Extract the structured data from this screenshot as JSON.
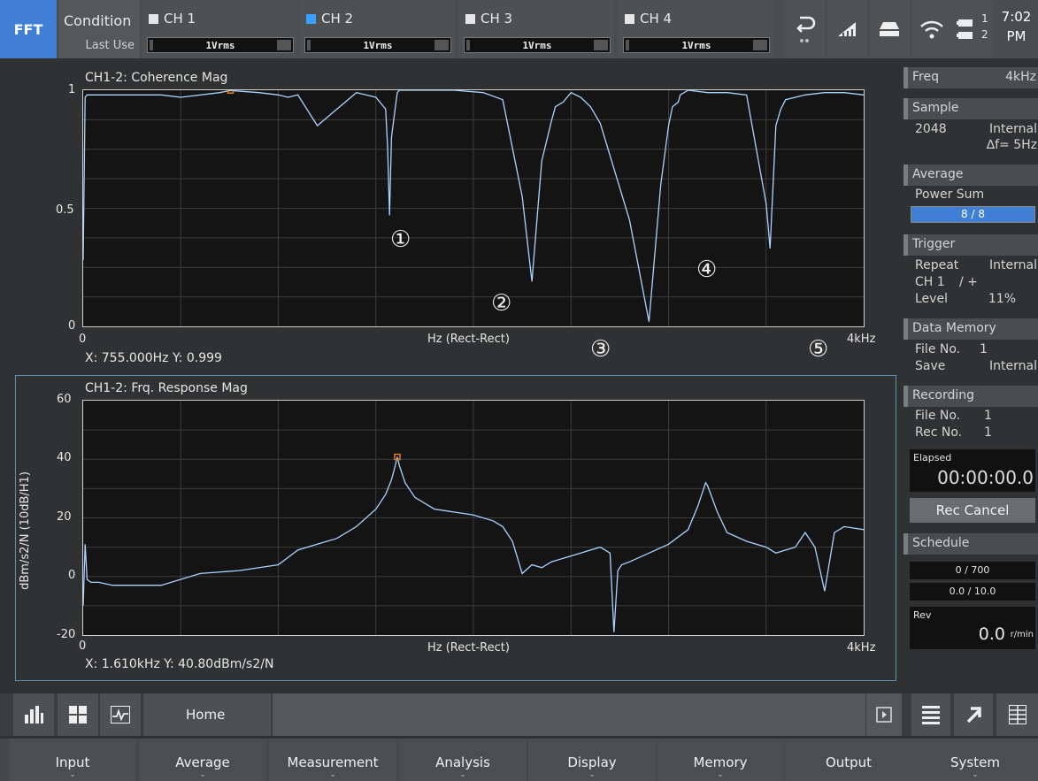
{
  "topbar": {
    "mode": "FFT",
    "condition_label": "Condition",
    "condition_sub": "Last Use",
    "channels": [
      {
        "label": "CH 1",
        "range": "1Vrms",
        "color": "#e6e6e6"
      },
      {
        "label": "CH 2",
        "range": "1Vrms",
        "color": "#3aa0ff"
      },
      {
        "label": "CH 3",
        "range": "1Vrms",
        "color": "#e6e6e6"
      },
      {
        "label": "CH 4",
        "range": "1Vrms",
        "color": "#e6e6e6"
      }
    ],
    "icons": [
      "return-icon",
      "ruler-icon",
      "drive-icon",
      "wifi-icon",
      "battery-icon"
    ],
    "battery_labels": [
      "1",
      "2"
    ],
    "time": "7:02",
    "ampm": "PM"
  },
  "plot1": {
    "title": "CH1-2: Coherence Mag",
    "y_ticks": [
      "1",
      "0.5",
      "0"
    ],
    "x_start": "0",
    "x_end": "4kHz",
    "x_axis_label": "Hz (Rect-Rect)",
    "readout": "X: 755.000Hz Y: 0.999",
    "markers": [
      "①",
      "②",
      "③",
      "④",
      "⑤"
    ]
  },
  "plot2": {
    "title": "CH1-2: Frq. Response Mag",
    "y_axis_label": "dBm/s2/N (10dB/H1)",
    "y_ticks": [
      "60",
      "40",
      "20",
      "0",
      "-20"
    ],
    "x_start": "0",
    "x_end": "4kHz",
    "x_axis_label": "Hz (Rect-Rect)",
    "readout": "X: 1.610kHz Y: 40.80dBm/s2/N"
  },
  "chart_data": [
    {
      "type": "line",
      "title": "CH1-2: Coherence Mag",
      "xlabel": "Hz (Rect-Rect)",
      "xlim": [
        0,
        4000
      ],
      "ylim": [
        0,
        1
      ],
      "grid": true,
      "cursor": {
        "x": 755,
        "y": 0.999
      },
      "x": [
        0,
        10,
        20,
        60,
        200,
        400,
        500,
        700,
        755,
        900,
        1000,
        1050,
        1100,
        1200,
        1400,
        1450,
        1500,
        1550,
        1560,
        1570,
        1580,
        1600,
        1610,
        1620,
        1650,
        1700,
        1750,
        1800,
        1900,
        2050,
        2150,
        2250,
        2300,
        2350,
        2400,
        2420,
        2460,
        2500,
        2550,
        2600,
        2650,
        2800,
        2900,
        2960,
        3000,
        3020,
        3050,
        3060,
        3080,
        3100,
        3200,
        3300,
        3400,
        3450,
        3500,
        3520,
        3550,
        3575,
        3600,
        3700,
        3800,
        3900,
        4000
      ],
      "values": [
        0.28,
        0.97,
        0.98,
        0.98,
        0.98,
        0.98,
        0.97,
        0.99,
        0.999,
        0.99,
        0.98,
        0.97,
        0.98,
        0.85,
        0.99,
        0.98,
        0.97,
        0.92,
        0.76,
        0.47,
        0.8,
        0.93,
        0.99,
        1.0,
        1.0,
        1.0,
        1.0,
        1.0,
        1.0,
        0.99,
        0.96,
        0.55,
        0.19,
        0.7,
        0.87,
        0.93,
        0.95,
        0.99,
        0.97,
        0.93,
        0.86,
        0.45,
        0.02,
        0.6,
        0.85,
        0.93,
        0.95,
        0.98,
        0.99,
        1.0,
        0.99,
        0.99,
        0.98,
        0.75,
        0.52,
        0.33,
        0.85,
        0.92,
        0.96,
        0.98,
        0.99,
        0.99,
        0.98
      ]
    },
    {
      "type": "line",
      "title": "CH1-2: Frq. Response Mag",
      "xlabel": "Hz (Rect-Rect)",
      "ylabel": "dBm/s2/N (10dB/H1)",
      "xlim": [
        0,
        4000
      ],
      "ylim": [
        -20,
        60
      ],
      "grid": true,
      "cursor": {
        "x": 1610,
        "y": 40.8
      },
      "x": [
        0,
        10,
        20,
        40,
        80,
        150,
        250,
        400,
        600,
        800,
        1000,
        1100,
        1200,
        1300,
        1400,
        1500,
        1550,
        1580,
        1600,
        1610,
        1620,
        1650,
        1680,
        1700,
        1750,
        1800,
        1900,
        2000,
        2100,
        2150,
        2200,
        2250,
        2300,
        2350,
        2400,
        2500,
        2600,
        2650,
        2700,
        2720,
        2740,
        2760,
        2800,
        2900,
        3000,
        3100,
        3150,
        3190,
        3200,
        3250,
        3300,
        3400,
        3500,
        3550,
        3600,
        3650,
        3700,
        3750,
        3800,
        3850,
        3900,
        4000
      ],
      "values": [
        -10,
        11,
        -1,
        -2,
        -2,
        -3,
        -3,
        -3,
        1,
        2,
        4,
        9,
        11,
        13,
        17,
        23,
        28,
        33,
        38,
        40.8,
        38,
        32,
        29,
        27,
        25,
        23,
        22,
        21,
        19,
        17,
        12,
        1,
        4,
        3,
        5,
        7,
        9,
        10,
        8,
        -19,
        2,
        4,
        5,
        8,
        11,
        16,
        24,
        32,
        31,
        22,
        15,
        12,
        10,
        8,
        9,
        10,
        15,
        10,
        -5,
        15,
        17,
        16
      ]
    }
  ],
  "sidebar": {
    "freq_label": "Freq",
    "freq_value": "4kHz",
    "sample_label": "Sample",
    "sample_points": "2048",
    "sample_source": "Internal",
    "sample_df": "∆f= 5Hz",
    "average_label": "Average",
    "average_mode": "Power Sum",
    "average_progress": "8 / 8",
    "average_fraction": 1.0,
    "trigger_label": "Trigger",
    "trigger_mode": "Repeat",
    "trigger_source": "Internal",
    "trigger_ch": "CH 1",
    "trigger_slope": "/  +",
    "trigger_level_label": "Level",
    "trigger_level": "11%",
    "datamem_label": "Data Memory",
    "datamem_file_label": "File No.",
    "datamem_file": "1",
    "datamem_save_label": "Save",
    "datamem_save": "Internal",
    "recording_label": "Recording",
    "rec_file_label": "File No.",
    "rec_file": "1",
    "rec_no_label": "Rec No.",
    "rec_no": "1",
    "elapsed_label": "Elapsed",
    "elapsed_value": "00:00:00.0",
    "rec_cancel": "Rec Cancel",
    "schedule_label": "Schedule",
    "schedule_count": "0 / 700",
    "schedule_time": "0.0 / 10.0",
    "rev_label": "Rev",
    "rev_value": "0.0",
    "rev_unit": "r/min"
  },
  "toolbar": {
    "home_label": "Home",
    "left_icons": [
      "bar-chart-icon",
      "grid-layout-icon",
      "waveform-icon"
    ],
    "right_icons": [
      "play-icon",
      "list-icon",
      "arrow-up-right-icon",
      "table-icon"
    ]
  },
  "menus": [
    "Input",
    "Average",
    "Measurement",
    "Analysis",
    "Display",
    "Memory",
    "Output",
    "System"
  ],
  "colors": {
    "accent": "#3f7fd6",
    "trace": "#a9d4ff",
    "cursor": "#e07b2a",
    "panel_border": "#5d8fb0"
  }
}
